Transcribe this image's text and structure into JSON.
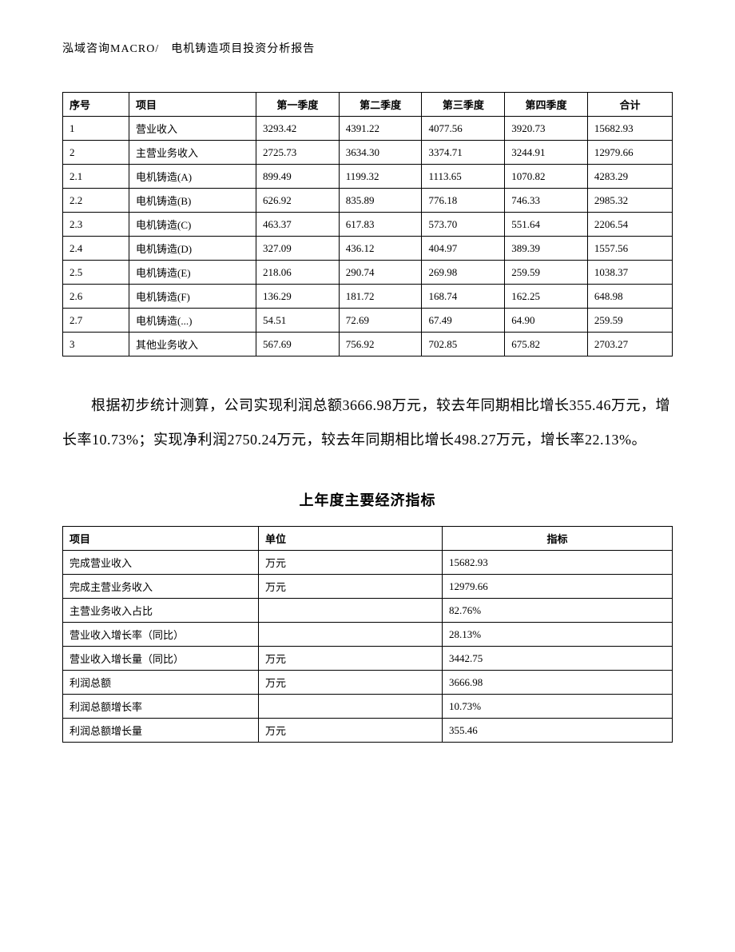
{
  "header": "泓域咨询MACRO/　电机铸造项目投资分析报告",
  "table1": {
    "columns": {
      "seq": "序号",
      "item": "项目",
      "q1": "第一季度",
      "q2": "第二季度",
      "q3": "第三季度",
      "q4": "第四季度",
      "total": "合计"
    },
    "rows": [
      {
        "seq": "1",
        "item": "营业收入",
        "q1": "3293.42",
        "q2": "4391.22",
        "q3": "4077.56",
        "q4": "3920.73",
        "total": "15682.93"
      },
      {
        "seq": "2",
        "item": "主营业务收入",
        "q1": "2725.73",
        "q2": "3634.30",
        "q3": "3374.71",
        "q4": "3244.91",
        "total": "12979.66"
      },
      {
        "seq": "2.1",
        "item": "电机铸造(A)",
        "q1": "899.49",
        "q2": "1199.32",
        "q3": "1113.65",
        "q4": "1070.82",
        "total": "4283.29"
      },
      {
        "seq": "2.2",
        "item": "电机铸造(B)",
        "q1": "626.92",
        "q2": "835.89",
        "q3": "776.18",
        "q4": "746.33",
        "total": "2985.32"
      },
      {
        "seq": "2.3",
        "item": "电机铸造(C)",
        "q1": "463.37",
        "q2": "617.83",
        "q3": "573.70",
        "q4": "551.64",
        "total": "2206.54"
      },
      {
        "seq": "2.4",
        "item": "电机铸造(D)",
        "q1": "327.09",
        "q2": "436.12",
        "q3": "404.97",
        "q4": "389.39",
        "total": "1557.56"
      },
      {
        "seq": "2.5",
        "item": "电机铸造(E)",
        "q1": "218.06",
        "q2": "290.74",
        "q3": "269.98",
        "q4": "259.59",
        "total": "1038.37"
      },
      {
        "seq": "2.6",
        "item": "电机铸造(F)",
        "q1": "136.29",
        "q2": "181.72",
        "q3": "168.74",
        "q4": "162.25",
        "total": "648.98"
      },
      {
        "seq": "2.7",
        "item": "电机铸造(...)",
        "q1": "54.51",
        "q2": "72.69",
        "q3": "67.49",
        "q4": "64.90",
        "total": "259.59"
      },
      {
        "seq": "3",
        "item": "其他业务收入",
        "q1": "567.69",
        "q2": "756.92",
        "q3": "702.85",
        "q4": "675.82",
        "total": "2703.27"
      }
    ]
  },
  "paragraph": "根据初步统计测算，公司实现利润总额3666.98万元，较去年同期相比增长355.46万元，增长率10.73%；实现净利润2750.24万元，较去年同期相比增长498.27万元，增长率22.13%。",
  "section_title": "上年度主要经济指标",
  "table2": {
    "columns": {
      "item": "项目",
      "unit": "单位",
      "metric": "指标"
    },
    "rows": [
      {
        "item": "完成营业收入",
        "unit": "万元",
        "metric": "15682.93"
      },
      {
        "item": "完成主营业务收入",
        "unit": "万元",
        "metric": "12979.66"
      },
      {
        "item": "主营业务收入占比",
        "unit": "",
        "metric": "82.76%"
      },
      {
        "item": "营业收入增长率（同比）",
        "unit": "",
        "metric": "28.13%"
      },
      {
        "item": "营业收入增长量（同比）",
        "unit": "万元",
        "metric": "3442.75"
      },
      {
        "item": "利润总额",
        "unit": "万元",
        "metric": "3666.98"
      },
      {
        "item": "利润总额增长率",
        "unit": "",
        "metric": "10.73%"
      },
      {
        "item": "利润总额增长量",
        "unit": "万元",
        "metric": "355.46"
      }
    ]
  }
}
